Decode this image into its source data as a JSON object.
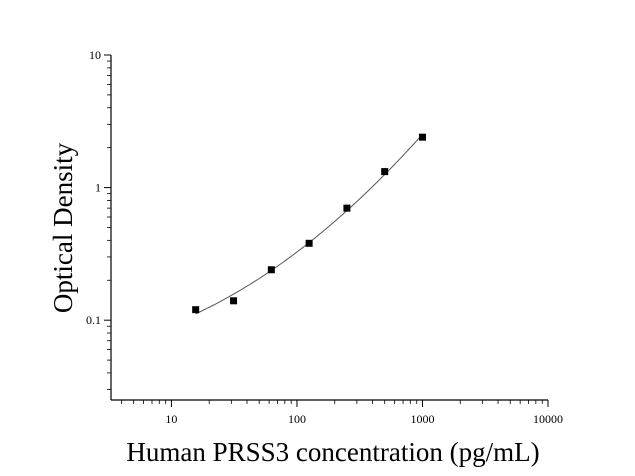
{
  "chart_data": {
    "type": "scatter",
    "title": "",
    "xlabel": "Human PRSS3 concentration (pg/mL)",
    "ylabel": "Optical Density",
    "xscale": "log",
    "yscale": "log",
    "xlim": [
      3.3,
      10000
    ],
    "ylim": [
      0.025,
      10
    ],
    "x_ticks": [
      {
        "value": 10,
        "label": "10"
      },
      {
        "value": 100,
        "label": "100"
      },
      {
        "value": 1000,
        "label": "1000"
      },
      {
        "value": 10000,
        "label": "10000"
      }
    ],
    "y_ticks": [
      {
        "value": 0.1,
        "label": "0.1"
      },
      {
        "value": 1,
        "label": "1"
      },
      {
        "value": 10,
        "label": "10"
      }
    ],
    "grid": false,
    "legend": "none",
    "marker_color": "#000000",
    "curve_color": "#555555",
    "series": [
      {
        "x": [
          15.6,
          31.25,
          62.5,
          125,
          250,
          500,
          1000
        ],
        "y": [
          0.12,
          0.14,
          0.24,
          0.38,
          0.7,
          1.32,
          2.4
        ]
      }
    ]
  }
}
